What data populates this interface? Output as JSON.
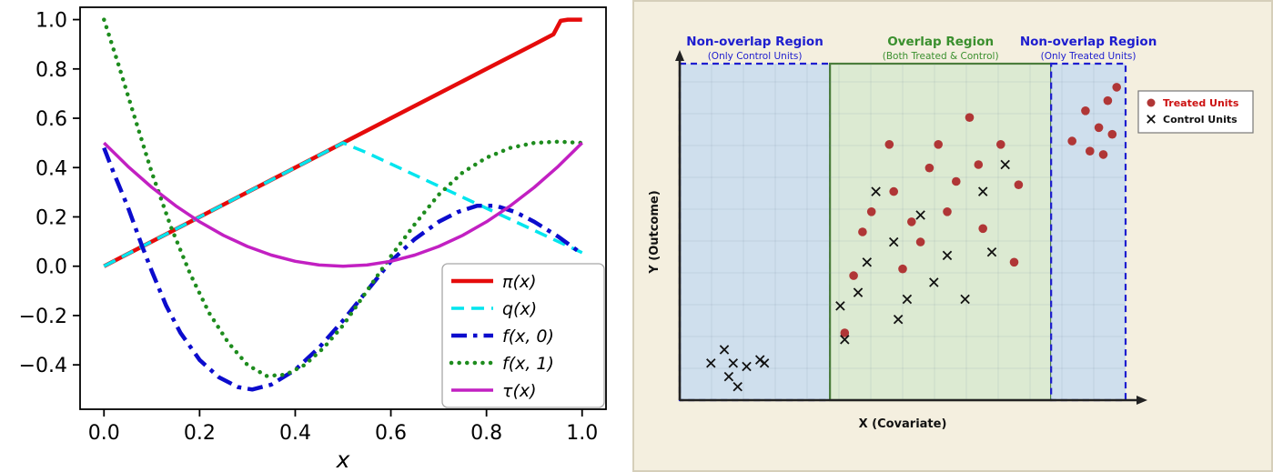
{
  "page": {
    "background": "#ffffff"
  },
  "chart_data": [
    {
      "type": "line",
      "title": "",
      "xlabel": "x",
      "ylabel": "",
      "xlim": [
        -0.05,
        1.05
      ],
      "ylim": [
        -0.58,
        1.05
      ],
      "x_tick_labels": [
        "0.0",
        "0.2",
        "0.4",
        "0.6",
        "0.8",
        "1.0"
      ],
      "x_tick_values": [
        0,
        0.2,
        0.4,
        0.6,
        0.8,
        1
      ],
      "y_tick_labels": [
        "−0.4",
        "−0.2",
        "0.0",
        "0.2",
        "0.4",
        "0.6",
        "0.8",
        "1.0"
      ],
      "y_tick_values": [
        -0.4,
        -0.2,
        0,
        0.2,
        0.4,
        0.6,
        0.8,
        1
      ],
      "grid": false,
      "legend_position": "lower right",
      "series": [
        {
          "name": "π(x)",
          "color": "#e50b0b",
          "style": "solid",
          "width": 4.5,
          "points": [
            [
              0,
              0
            ],
            [
              0.1,
              0.1
            ],
            [
              0.2,
              0.2
            ],
            [
              0.3,
              0.3
            ],
            [
              0.4,
              0.4
            ],
            [
              0.5,
              0.5
            ],
            [
              0.6,
              0.6
            ],
            [
              0.7,
              0.7
            ],
            [
              0.8,
              0.8
            ],
            [
              0.9,
              0.9
            ],
            [
              0.94,
              0.94
            ],
            [
              0.955,
              0.995
            ],
            [
              0.97,
              1.0
            ],
            [
              1.0,
              1.0
            ]
          ]
        },
        {
          "name": "q(x)",
          "color": "#00e5ee",
          "style": "dashed",
          "width": 3.5,
          "points": [
            [
              0,
              0
            ],
            [
              0.1,
              0.1
            ],
            [
              0.2,
              0.2
            ],
            [
              0.3,
              0.3
            ],
            [
              0.4,
              0.4
            ],
            [
              0.5,
              0.5
            ],
            [
              0.55,
              0.46
            ],
            [
              0.6,
              0.415
            ],
            [
              0.7,
              0.325
            ],
            [
              0.8,
              0.235
            ],
            [
              0.9,
              0.145
            ],
            [
              1.0,
              0.055
            ]
          ]
        },
        {
          "name": "f(x, 0)",
          "color": "#0c0ccd",
          "style": "dashdot",
          "width": 4.5,
          "points": [
            [
              0,
              0.48
            ],
            [
              0.02,
              0.38
            ],
            [
              0.05,
              0.24
            ],
            [
              0.08,
              0.08
            ],
            [
              0.1,
              -0.02
            ],
            [
              0.13,
              -0.16
            ],
            [
              0.16,
              -0.27
            ],
            [
              0.2,
              -0.38
            ],
            [
              0.24,
              -0.45
            ],
            [
              0.28,
              -0.49
            ],
            [
              0.31,
              -0.5
            ],
            [
              0.35,
              -0.48
            ],
            [
              0.4,
              -0.42
            ],
            [
              0.45,
              -0.33
            ],
            [
              0.5,
              -0.22
            ],
            [
              0.55,
              -0.1
            ],
            [
              0.6,
              0.02
            ],
            [
              0.65,
              0.11
            ],
            [
              0.7,
              0.18
            ],
            [
              0.74,
              0.22
            ],
            [
              0.78,
              0.245
            ],
            [
              0.82,
              0.245
            ],
            [
              0.86,
              0.22
            ],
            [
              0.9,
              0.18
            ],
            [
              0.95,
              0.12
            ],
            [
              1.0,
              0.05
            ]
          ]
        },
        {
          "name": "f(x, 1)",
          "color": "#1e8c1e",
          "style": "dotted",
          "width": 4.5,
          "points": [
            [
              0,
              1.0
            ],
            [
              0.03,
              0.82
            ],
            [
              0.06,
              0.63
            ],
            [
              0.1,
              0.38
            ],
            [
              0.14,
              0.16
            ],
            [
              0.18,
              -0.03
            ],
            [
              0.22,
              -0.19
            ],
            [
              0.26,
              -0.31
            ],
            [
              0.3,
              -0.4
            ],
            [
              0.34,
              -0.445
            ],
            [
              0.38,
              -0.44
            ],
            [
              0.42,
              -0.4
            ],
            [
              0.46,
              -0.33
            ],
            [
              0.5,
              -0.24
            ],
            [
              0.55,
              -0.1
            ],
            [
              0.6,
              0.04
            ],
            [
              0.65,
              0.17
            ],
            [
              0.7,
              0.29
            ],
            [
              0.75,
              0.38
            ],
            [
              0.8,
              0.44
            ],
            [
              0.85,
              0.48
            ],
            [
              0.9,
              0.5
            ],
            [
              0.95,
              0.505
            ],
            [
              1.0,
              0.5
            ]
          ]
        },
        {
          "name": "τ(x)",
          "color": "#c220c2",
          "style": "solid",
          "width": 3.5,
          "points": [
            [
              0,
              0.5
            ],
            [
              0.05,
              0.405
            ],
            [
              0.1,
              0.32
            ],
            [
              0.15,
              0.245
            ],
            [
              0.2,
              0.18
            ],
            [
              0.25,
              0.125
            ],
            [
              0.3,
              0.08
            ],
            [
              0.35,
              0.045
            ],
            [
              0.4,
              0.02
            ],
            [
              0.45,
              0.005
            ],
            [
              0.5,
              0
            ],
            [
              0.55,
              0.005
            ],
            [
              0.6,
              0.02
            ],
            [
              0.65,
              0.045
            ],
            [
              0.7,
              0.08
            ],
            [
              0.75,
              0.125
            ],
            [
              0.8,
              0.18
            ],
            [
              0.85,
              0.245
            ],
            [
              0.9,
              0.32
            ],
            [
              0.95,
              0.405
            ],
            [
              1.0,
              0.5
            ]
          ]
        }
      ]
    },
    {
      "type": "scatter",
      "title": "",
      "background": "#f4efdf",
      "panel_border_color": "#d6cfba",
      "xlabel": "X (Covariate)",
      "ylabel": "Y (Outcome)",
      "axis_color": "#222222",
      "regions": [
        {
          "name": "left-nonoverlap",
          "title": "Non-overlap Region",
          "subtitle": "(Only Control Units)",
          "x_range": [
            0,
            0.337
          ],
          "fill": "#cfdfed",
          "border_color": "#1d1dcf",
          "border_style": "dashed",
          "title_color": "#1d1dcf"
        },
        {
          "name": "overlap",
          "title": "Overlap Region",
          "subtitle": "(Both Treated & Control)",
          "x_range": [
            0.337,
            0.833
          ],
          "fill": "#dcead2",
          "border_color": "#4b7d3c",
          "border_style": "solid",
          "title_color": "#3a8f2e"
        },
        {
          "name": "right-nonoverlap",
          "title": "Non-overlap Region",
          "subtitle": "(Only Treated Units)",
          "x_range": [
            0.833,
            1.0
          ],
          "fill": "#cfdfed",
          "border_color": "#1d1dcf",
          "border_style": "dashed",
          "title_color": "#1d1dcf"
        }
      ],
      "legend": [
        {
          "label": "Treated Units",
          "marker": "dot",
          "marker_color": "#b03636",
          "text_color": "#cc1111"
        },
        {
          "label": "Control Units",
          "marker": "x",
          "marker_color": "#111111",
          "text_color": "#111111"
        }
      ],
      "series": [
        {
          "name": "Treated Units",
          "marker": "circle",
          "color": "#b03636",
          "points": [
            [
              0.39,
              0.37
            ],
            [
              0.41,
              0.5
            ],
            [
              0.43,
              0.56
            ],
            [
              0.47,
              0.76
            ],
            [
              0.48,
              0.62
            ],
            [
              0.5,
              0.39
            ],
            [
              0.52,
              0.53
            ],
            [
              0.54,
              0.47
            ],
            [
              0.56,
              0.69
            ],
            [
              0.58,
              0.76
            ],
            [
              0.6,
              0.56
            ],
            [
              0.62,
              0.65
            ],
            [
              0.65,
              0.84
            ],
            [
              0.67,
              0.7
            ],
            [
              0.68,
              0.51
            ],
            [
              0.72,
              0.76
            ],
            [
              0.75,
              0.41
            ],
            [
              0.76,
              0.64
            ],
            [
              0.37,
              0.2
            ],
            [
              0.88,
              0.77
            ],
            [
              0.91,
              0.86
            ],
            [
              0.92,
              0.74
            ],
            [
              0.94,
              0.81
            ],
            [
              0.95,
              0.73
            ],
            [
              0.96,
              0.89
            ],
            [
              0.97,
              0.79
            ],
            [
              0.98,
              0.93
            ]
          ]
        },
        {
          "name": "Control Units",
          "marker": "x",
          "color": "#111111",
          "points": [
            [
              0.07,
              0.11
            ],
            [
              0.1,
              0.15
            ],
            [
              0.11,
              0.07
            ],
            [
              0.12,
              0.11
            ],
            [
              0.13,
              0.04
            ],
            [
              0.15,
              0.1
            ],
            [
              0.18,
              0.12
            ],
            [
              0.19,
              0.11
            ],
            [
              0.36,
              0.28
            ],
            [
              0.37,
              0.18
            ],
            [
              0.4,
              0.32
            ],
            [
              0.42,
              0.41
            ],
            [
              0.44,
              0.62
            ],
            [
              0.48,
              0.47
            ],
            [
              0.49,
              0.24
            ],
            [
              0.51,
              0.3
            ],
            [
              0.54,
              0.55
            ],
            [
              0.57,
              0.35
            ],
            [
              0.6,
              0.43
            ],
            [
              0.64,
              0.3
            ],
            [
              0.68,
              0.62
            ],
            [
              0.7,
              0.44
            ],
            [
              0.73,
              0.7
            ]
          ]
        }
      ]
    }
  ]
}
